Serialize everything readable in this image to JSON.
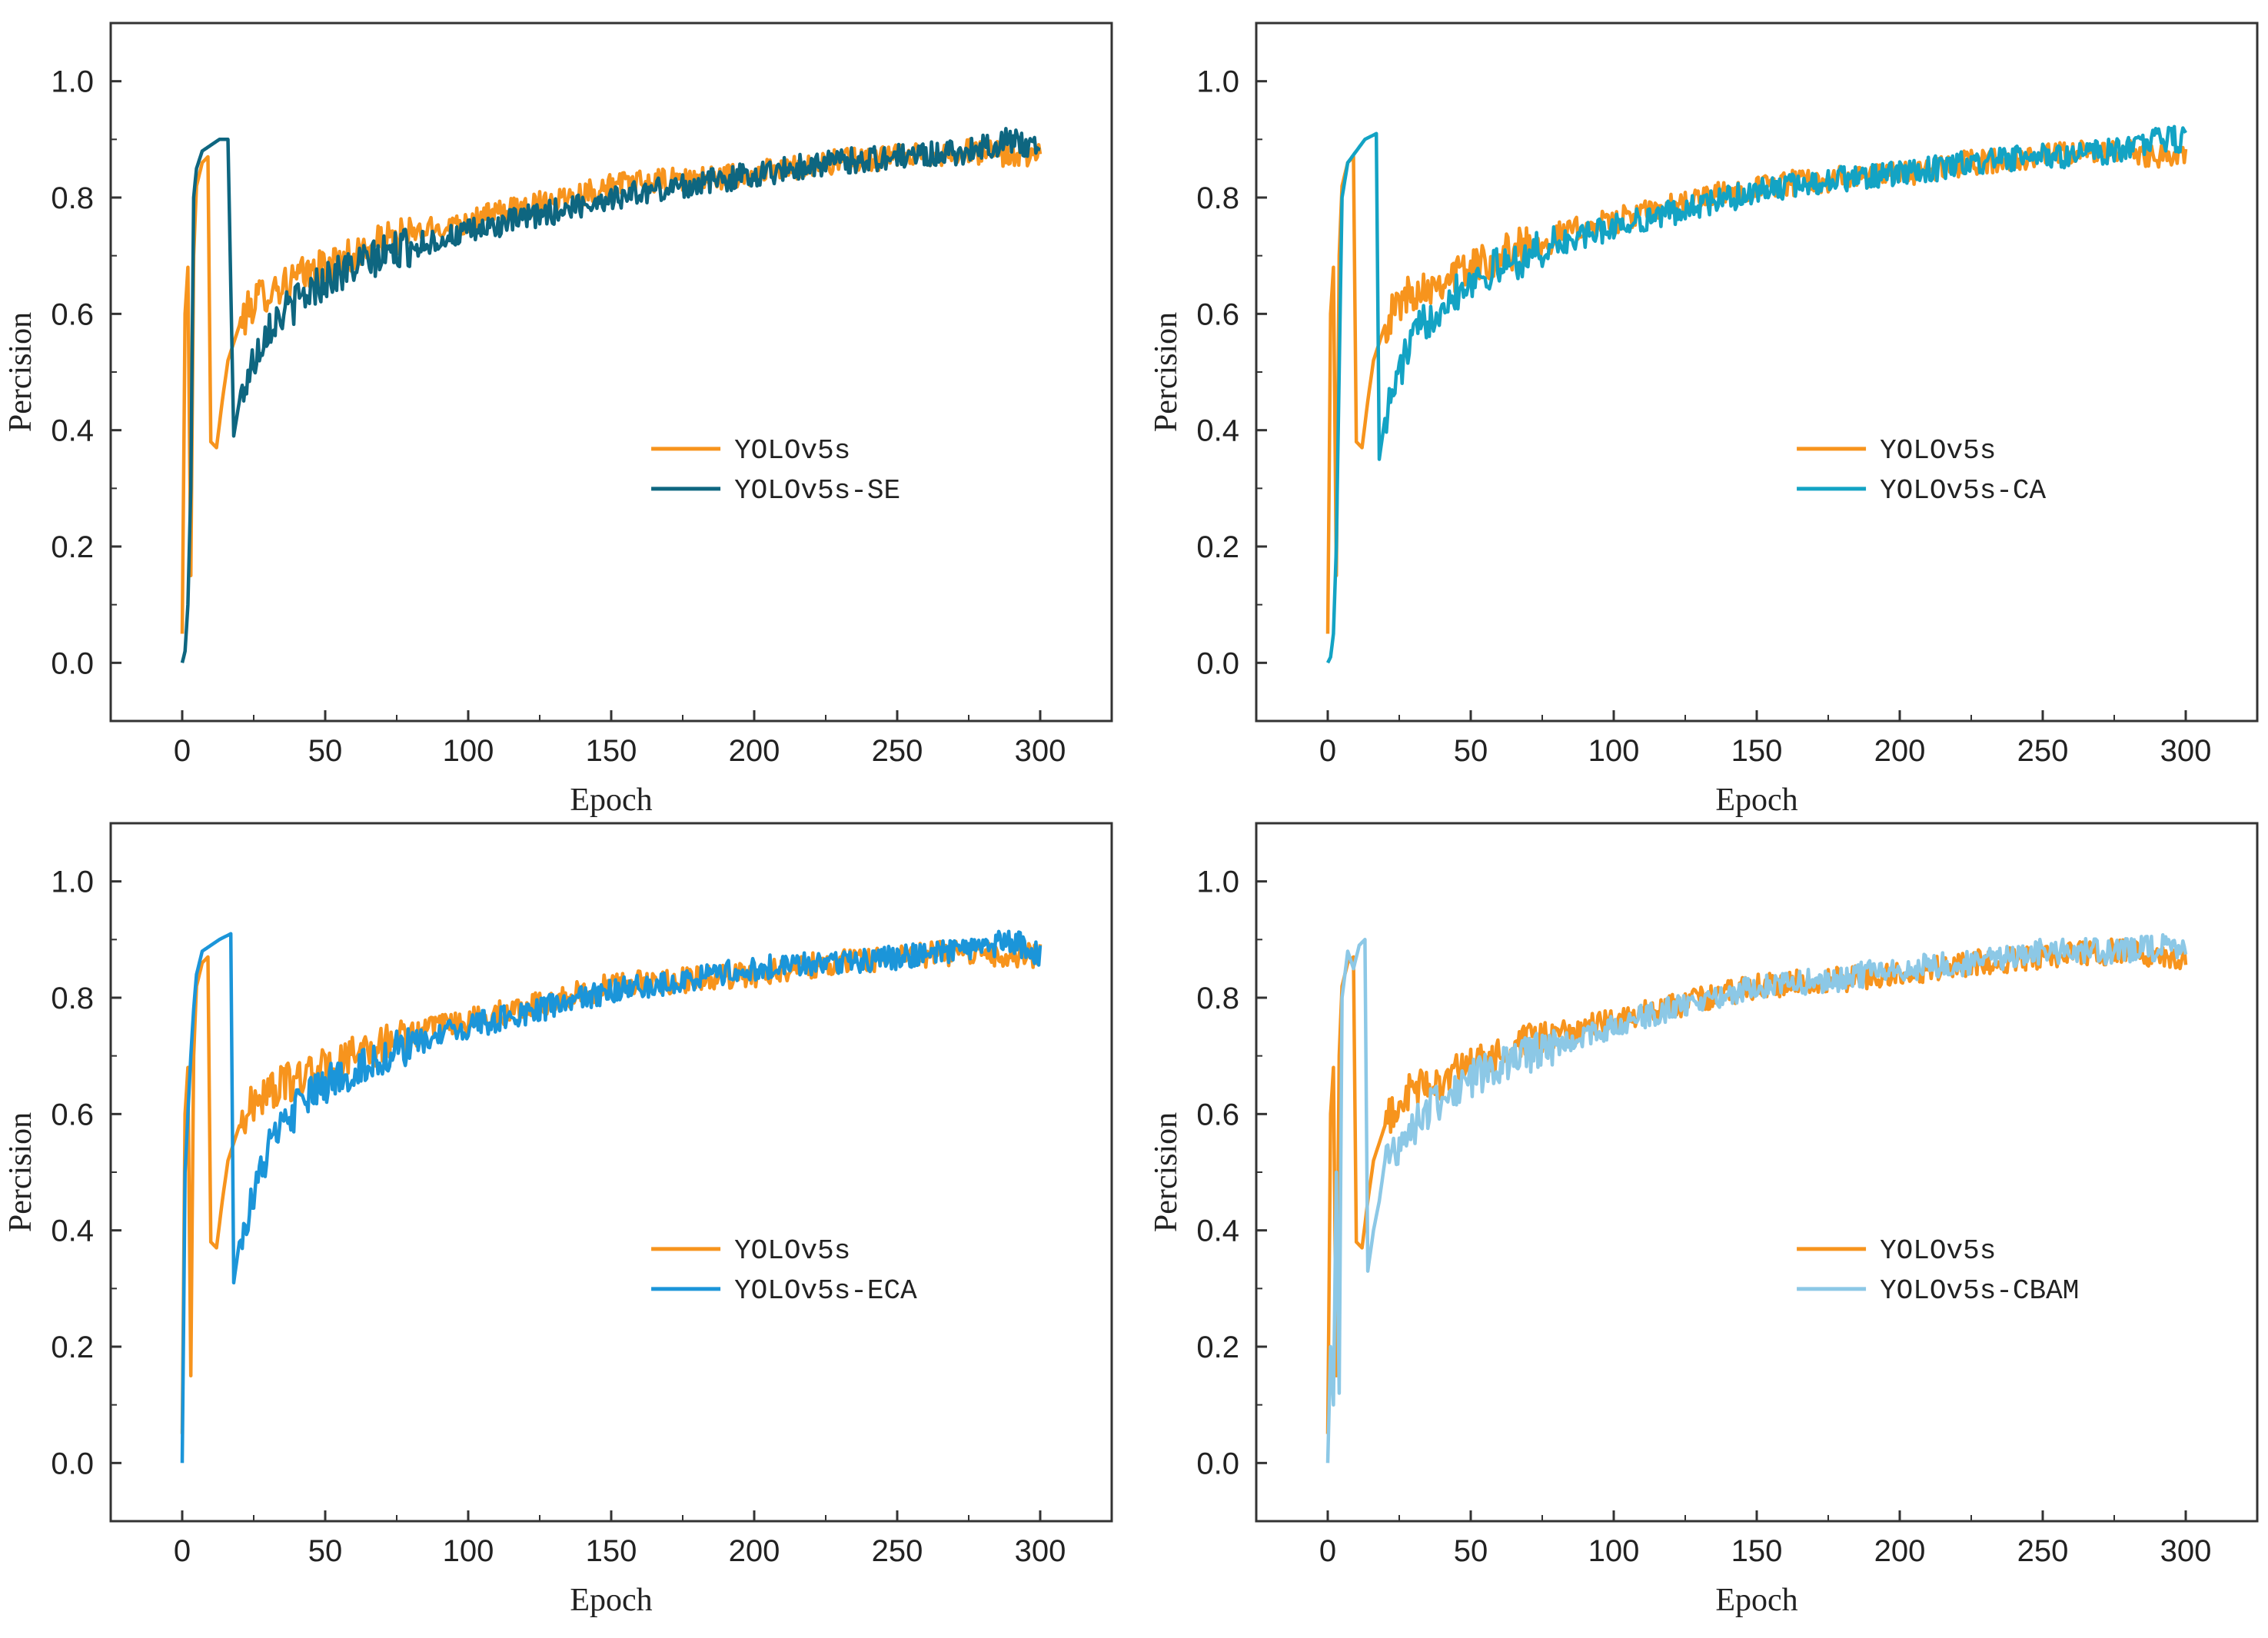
{
  "chart_data": [
    {
      "type": "line",
      "xlabel": "Epoch",
      "ylabel": "Percision",
      "xlim": [
        -25,
        325
      ],
      "ylim": [
        -0.1,
        1.1
      ],
      "xticks": [
        0,
        50,
        100,
        150,
        200,
        250,
        300
      ],
      "yticks": [
        0.0,
        0.2,
        0.4,
        0.6,
        0.8,
        1.0
      ],
      "legend_position": "center-right",
      "series": [
        {
          "name": "YOLOv5s",
          "color": "#F7941D",
          "points": [
            [
              0,
              0.05
            ],
            [
              1,
              0.6
            ],
            [
              2,
              0.68
            ],
            [
              3,
              0.15
            ],
            [
              4,
              0.7
            ],
            [
              5,
              0.82
            ],
            [
              7,
              0.86
            ],
            [
              9,
              0.87
            ],
            [
              10,
              0.38
            ],
            [
              12,
              0.37
            ],
            [
              14,
              0.45
            ],
            [
              16,
              0.52
            ],
            [
              18,
              0.55
            ],
            [
              20,
              0.58
            ],
            [
              25,
              0.62
            ],
            [
              30,
              0.64
            ],
            [
              40,
              0.66
            ],
            [
              50,
              0.68
            ],
            [
              75,
              0.73
            ],
            [
              100,
              0.76
            ],
            [
              125,
              0.79
            ],
            [
              150,
              0.82
            ],
            [
              175,
              0.83
            ],
            [
              200,
              0.84
            ],
            [
              225,
              0.86
            ],
            [
              250,
              0.87
            ],
            [
              275,
              0.88
            ],
            [
              300,
              0.87
            ]
          ]
        },
        {
          "name": "YOLOv5s-SE",
          "color": "#0E6680",
          "points": [
            [
              0,
              0.0
            ],
            [
              1,
              0.02
            ],
            [
              2,
              0.1
            ],
            [
              3,
              0.3
            ],
            [
              4,
              0.8
            ],
            [
              5,
              0.85
            ],
            [
              7,
              0.88
            ],
            [
              10,
              0.89
            ],
            [
              13,
              0.9
            ],
            [
              16,
              0.9
            ],
            [
              18,
              0.39
            ],
            [
              20,
              0.45
            ],
            [
              25,
              0.52
            ],
            [
              30,
              0.58
            ],
            [
              40,
              0.62
            ],
            [
              50,
              0.66
            ],
            [
              75,
              0.71
            ],
            [
              100,
              0.74
            ],
            [
              125,
              0.77
            ],
            [
              150,
              0.8
            ],
            [
              175,
              0.82
            ],
            [
              200,
              0.84
            ],
            [
              225,
              0.86
            ],
            [
              250,
              0.87
            ],
            [
              275,
              0.88
            ],
            [
              290,
              0.9
            ],
            [
              300,
              0.88
            ]
          ]
        }
      ]
    },
    {
      "type": "line",
      "xlabel": "Epoch",
      "ylabel": "Percision",
      "xlim": [
        -25,
        325
      ],
      "ylim": [
        -0.1,
        1.1
      ],
      "xticks": [
        0,
        50,
        100,
        150,
        200,
        250,
        300
      ],
      "yticks": [
        0.0,
        0.2,
        0.4,
        0.6,
        0.8,
        1.0
      ],
      "legend_position": "center-right",
      "series": [
        {
          "name": "YOLOv5s",
          "color": "#F7941D",
          "points": [
            [
              0,
              0.05
            ],
            [
              1,
              0.6
            ],
            [
              2,
              0.68
            ],
            [
              3,
              0.15
            ],
            [
              4,
              0.7
            ],
            [
              5,
              0.82
            ],
            [
              7,
              0.86
            ],
            [
              9,
              0.87
            ],
            [
              10,
              0.38
            ],
            [
              12,
              0.37
            ],
            [
              14,
              0.45
            ],
            [
              16,
              0.52
            ],
            [
              18,
              0.55
            ],
            [
              20,
              0.58
            ],
            [
              25,
              0.62
            ],
            [
              30,
              0.64
            ],
            [
              40,
              0.66
            ],
            [
              50,
              0.68
            ],
            [
              75,
              0.73
            ],
            [
              100,
              0.76
            ],
            [
              125,
              0.79
            ],
            [
              150,
              0.82
            ],
            [
              175,
              0.83
            ],
            [
              200,
              0.84
            ],
            [
              225,
              0.86
            ],
            [
              250,
              0.87
            ],
            [
              275,
              0.88
            ],
            [
              300,
              0.87
            ]
          ]
        },
        {
          "name": "YOLOv5s-CA",
          "color": "#13A3C4",
          "points": [
            [
              0,
              0.0
            ],
            [
              1,
              0.01
            ],
            [
              2,
              0.05
            ],
            [
              3,
              0.2
            ],
            [
              4,
              0.5
            ],
            [
              5,
              0.8
            ],
            [
              7,
              0.86
            ],
            [
              10,
              0.88
            ],
            [
              13,
              0.9
            ],
            [
              17,
              0.91
            ],
            [
              18,
              0.35
            ],
            [
              20,
              0.42
            ],
            [
              25,
              0.5
            ],
            [
              30,
              0.56
            ],
            [
              40,
              0.62
            ],
            [
              50,
              0.66
            ],
            [
              75,
              0.71
            ],
            [
              100,
              0.75
            ],
            [
              125,
              0.78
            ],
            [
              150,
              0.81
            ],
            [
              175,
              0.83
            ],
            [
              200,
              0.84
            ],
            [
              225,
              0.86
            ],
            [
              250,
              0.87
            ],
            [
              275,
              0.88
            ],
            [
              290,
              0.9
            ],
            [
              300,
              0.9
            ]
          ]
        }
      ]
    },
    {
      "type": "line",
      "xlabel": "Epoch",
      "ylabel": "Percision",
      "xlim": [
        -25,
        325
      ],
      "ylim": [
        -0.1,
        1.1
      ],
      "xticks": [
        0,
        50,
        100,
        150,
        200,
        250,
        300
      ],
      "yticks": [
        0.0,
        0.2,
        0.4,
        0.6,
        0.8,
        1.0
      ],
      "legend_position": "center-right",
      "series": [
        {
          "name": "YOLOv5s",
          "color": "#F7941D",
          "points": [
            [
              0,
              0.05
            ],
            [
              1,
              0.6
            ],
            [
              2,
              0.68
            ],
            [
              3,
              0.15
            ],
            [
              4,
              0.7
            ],
            [
              5,
              0.82
            ],
            [
              7,
              0.86
            ],
            [
              9,
              0.87
            ],
            [
              10,
              0.38
            ],
            [
              12,
              0.37
            ],
            [
              14,
              0.45
            ],
            [
              16,
              0.52
            ],
            [
              18,
              0.55
            ],
            [
              20,
              0.58
            ],
            [
              25,
              0.62
            ],
            [
              30,
              0.64
            ],
            [
              40,
              0.66
            ],
            [
              50,
              0.68
            ],
            [
              75,
              0.73
            ],
            [
              100,
              0.76
            ],
            [
              125,
              0.79
            ],
            [
              150,
              0.82
            ],
            [
              175,
              0.83
            ],
            [
              200,
              0.84
            ],
            [
              225,
              0.86
            ],
            [
              250,
              0.87
            ],
            [
              275,
              0.88
            ],
            [
              300,
              0.87
            ]
          ]
        },
        {
          "name": "YOLOv5s-ECA",
          "color": "#1B95D9",
          "points": [
            [
              0,
              0.0
            ],
            [
              1,
              0.5
            ],
            [
              2,
              0.6
            ],
            [
              3,
              0.7
            ],
            [
              4,
              0.78
            ],
            [
              5,
              0.84
            ],
            [
              7,
              0.88
            ],
            [
              10,
              0.89
            ],
            [
              13,
              0.9
            ],
            [
              17,
              0.91
            ],
            [
              18,
              0.31
            ],
            [
              20,
              0.38
            ],
            [
              25,
              0.46
            ],
            [
              30,
              0.54
            ],
            [
              40,
              0.61
            ],
            [
              50,
              0.65
            ],
            [
              75,
              0.71
            ],
            [
              100,
              0.75
            ],
            [
              125,
              0.78
            ],
            [
              150,
              0.81
            ],
            [
              175,
              0.83
            ],
            [
              200,
              0.85
            ],
            [
              225,
              0.86
            ],
            [
              250,
              0.87
            ],
            [
              275,
              0.88
            ],
            [
              290,
              0.9
            ],
            [
              300,
              0.87
            ]
          ]
        }
      ]
    },
    {
      "type": "line",
      "xlabel": "Epoch",
      "ylabel": "Percision",
      "xlim": [
        -25,
        325
      ],
      "ylim": [
        -0.1,
        1.1
      ],
      "xticks": [
        0,
        50,
        100,
        150,
        200,
        250,
        300
      ],
      "yticks": [
        0.0,
        0.2,
        0.4,
        0.6,
        0.8,
        1.0
      ],
      "legend_position": "center-right",
      "series": [
        {
          "name": "YOLOv5s",
          "color": "#F7941D",
          "points": [
            [
              0,
              0.05
            ],
            [
              1,
              0.6
            ],
            [
              2,
              0.68
            ],
            [
              3,
              0.15
            ],
            [
              4,
              0.7
            ],
            [
              5,
              0.82
            ],
            [
              7,
              0.86
            ],
            [
              9,
              0.87
            ],
            [
              10,
              0.38
            ],
            [
              12,
              0.37
            ],
            [
              14,
              0.45
            ],
            [
              16,
              0.52
            ],
            [
              18,
              0.55
            ],
            [
              20,
              0.58
            ],
            [
              25,
              0.62
            ],
            [
              30,
              0.64
            ],
            [
              40,
              0.66
            ],
            [
              50,
              0.68
            ],
            [
              75,
              0.73
            ],
            [
              100,
              0.76
            ],
            [
              125,
              0.79
            ],
            [
              150,
              0.82
            ],
            [
              175,
              0.83
            ],
            [
              200,
              0.84
            ],
            [
              225,
              0.86
            ],
            [
              250,
              0.87
            ],
            [
              275,
              0.88
            ],
            [
              300,
              0.87
            ]
          ]
        },
        {
          "name": "YOLOv5s-CBAM",
          "color": "#8CC8E6",
          "points": [
            [
              0,
              0.0
            ],
            [
              1,
              0.2
            ],
            [
              2,
              0.1
            ],
            [
              3,
              0.5
            ],
            [
              4,
              0.12
            ],
            [
              5,
              0.8
            ],
            [
              7,
              0.88
            ],
            [
              9,
              0.85
            ],
            [
              11,
              0.89
            ],
            [
              13,
              0.9
            ],
            [
              14,
              0.33
            ],
            [
              16,
              0.4
            ],
            [
              18,
              0.45
            ],
            [
              20,
              0.52
            ],
            [
              25,
              0.55
            ],
            [
              30,
              0.58
            ],
            [
              40,
              0.63
            ],
            [
              50,
              0.66
            ],
            [
              75,
              0.71
            ],
            [
              100,
              0.75
            ],
            [
              125,
              0.79
            ],
            [
              150,
              0.82
            ],
            [
              175,
              0.83
            ],
            [
              200,
              0.85
            ],
            [
              225,
              0.86
            ],
            [
              250,
              0.88
            ],
            [
              275,
              0.88
            ],
            [
              300,
              0.89
            ]
          ]
        }
      ]
    }
  ]
}
